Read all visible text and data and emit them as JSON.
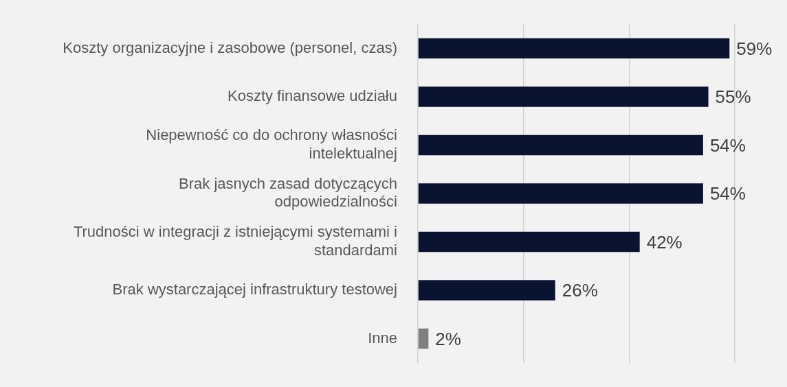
{
  "chart_data": {
    "type": "bar",
    "orientation": "horizontal",
    "relative": false,
    "categories": [
      "Koszty organizacyjne i zasobowe (personel, czas)",
      "Koszty finansowe udziału",
      "Niepewność co do ochrony własności intelektualnej",
      "Brak jasnych zasad dotyczących odpowiedzialności",
      "Trudności w integracji z istniejącymi systemami i standardami",
      "Brak wystarczającej infrastruktury testowej",
      "Inne"
    ],
    "values": [
      59,
      55,
      54,
      54,
      42,
      26,
      2
    ],
    "colors": [
      "#0a1330",
      "#0a1330",
      "#0a1330",
      "#0a1330",
      "#0a1330",
      "#0a1330",
      "#808080"
    ],
    "value_labels": [
      "59%",
      "55%",
      "54%",
      "54%",
      "42%",
      "26%",
      "2%"
    ],
    "xlim": [
      0,
      60
    ],
    "xticks": [
      {
        "value": 0,
        "label": null
      },
      {
        "value": 20,
        "label": null
      },
      {
        "value": 40,
        "label": null
      },
      {
        "value": 60,
        "label": null
      }
    ],
    "grid": "x",
    "tick_labels": "y",
    "legend": false
  }
}
